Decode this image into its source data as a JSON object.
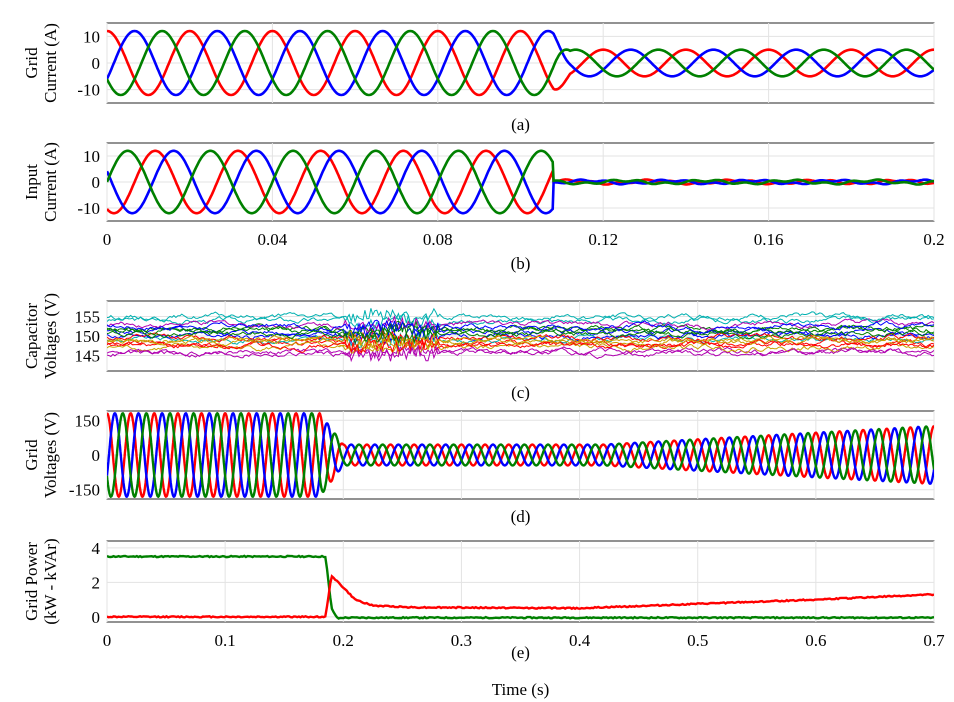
{
  "chart_data": [
    {
      "type": "line",
      "id": "a",
      "caption": "(a)",
      "ylabel": [
        "Grid",
        "Current (A)"
      ],
      "xlim": [
        0,
        0.2
      ],
      "ylim": [
        -15,
        15
      ],
      "yticks": [
        -10,
        0,
        10
      ],
      "ytick_labels": [
        "-10",
        "0",
        "10"
      ],
      "show_xtick_labels": false,
      "series": [
        {
          "color": "#ff0000",
          "amplitude_before": 12,
          "amplitude_after": 5,
          "phase_deg": 90,
          "freq_hz": 50
        },
        {
          "color": "#0000ff",
          "amplitude_before": 12,
          "amplitude_after": 5,
          "phase_deg": -30,
          "freq_hz": 50
        },
        {
          "color": "#008000",
          "amplitude_before": 12,
          "amplitude_after": 5,
          "phase_deg": 210,
          "freq_hz": 50
        }
      ],
      "event_time": 0.108
    },
    {
      "type": "line",
      "id": "b",
      "caption": "(b)",
      "ylabel": [
        "Input",
        "Current (A)"
      ],
      "xlim": [
        0,
        0.2
      ],
      "ylim": [
        -15,
        15
      ],
      "yticks": [
        -10,
        0,
        10
      ],
      "ytick_labels": [
        "-10",
        "0",
        "10"
      ],
      "xticks": [
        0,
        0.04,
        0.08,
        0.12,
        0.16,
        0.2
      ],
      "xtick_labels": [
        "0",
        "0.04",
        "0.08",
        "0.12",
        "0.16",
        "0.2"
      ],
      "show_xtick_labels": true,
      "series": [
        {
          "color": "#ff0000",
          "amplitude_before": 12,
          "amplitude_after": 0.6,
          "phase_deg": 240,
          "freq_hz": 50
        },
        {
          "color": "#0000ff",
          "amplitude_before": 12,
          "amplitude_after": 0.6,
          "phase_deg": 160,
          "freq_hz": 50
        },
        {
          "color": "#008000",
          "amplitude_before": 12,
          "amplitude_after": 0.6,
          "phase_deg": 0,
          "freq_hz": 50
        }
      ],
      "event_time": 0.108
    },
    {
      "type": "line",
      "id": "c",
      "caption": "(c)",
      "ylabel": [
        "Capacitor",
        "Voltages (V)"
      ],
      "xlim": [
        0,
        0.7
      ],
      "ylim": [
        141,
        159
      ],
      "yticks": [
        145,
        150,
        155
      ],
      "ytick_labels": [
        "145",
        "150",
        "155"
      ],
      "show_xtick_labels": false,
      "series_colors": [
        "#00b0b0",
        "#b000b0",
        "#0000ff",
        "#ff0000",
        "#008000",
        "#c8a000",
        "#00b0b0",
        "#b000b0",
        "#0000ff",
        "#ff0000",
        "#008000",
        "#c8a000",
        "#00b0b0",
        "#b000b0",
        "#0000ff",
        "#ff0000",
        "#008000",
        "#c8a000"
      ],
      "series_levels": [
        154,
        146,
        151,
        148,
        152,
        147,
        149,
        153,
        150,
        149.5,
        151.5,
        148.5,
        155,
        145.5,
        152.5,
        147.5,
        150.5,
        149
      ]
    },
    {
      "type": "line",
      "id": "d",
      "caption": "(d)",
      "ylabel": [
        "Grid",
        "Voltages (V)"
      ],
      "xlim": [
        0,
        0.7
      ],
      "ylim": [
        -190,
        190
      ],
      "yticks": [
        -150,
        0,
        150
      ],
      "ytick_labels": [
        "-150",
        "0",
        "150"
      ],
      "show_xtick_labels": false,
      "series": [
        {
          "color": "#ff0000",
          "phase_deg": 90
        },
        {
          "color": "#0000ff",
          "phase_deg": -30
        },
        {
          "color": "#008000",
          "phase_deg": 210
        }
      ],
      "freq_hz": 50,
      "amplitude_before": 180,
      "amplitude_after": 45,
      "amplitude_end": 125,
      "event_time": 0.19
    },
    {
      "type": "line",
      "id": "e",
      "caption": "(e)",
      "ylabel": [
        "Grid Power",
        "(kW - kVAr)"
      ],
      "xlabel": "Time (s)",
      "xlim": [
        0,
        0.7
      ],
      "ylim": [
        -0.3,
        4.4
      ],
      "yticks": [
        0,
        2,
        4
      ],
      "ytick_labels": [
        "0",
        "2",
        "4"
      ],
      "xticks": [
        0,
        0.1,
        0.2,
        0.3,
        0.4,
        0.5,
        0.6,
        0.7
      ],
      "xtick_labels": [
        "0",
        "0.1",
        "0.2",
        "0.3",
        "0.4",
        "0.5",
        "0.6",
        "0.7"
      ],
      "show_xtick_labels": true,
      "series": [
        {
          "color": "#008000",
          "points": [
            [
              0,
              3.5
            ],
            [
              0.185,
              3.5
            ],
            [
              0.19,
              0.5
            ],
            [
              0.195,
              -0.1
            ],
            [
              0.2,
              -0.05
            ],
            [
              0.7,
              -0.05
            ]
          ]
        },
        {
          "color": "#ff0000",
          "points": [
            [
              0,
              0.0
            ],
            [
              0.185,
              0.0
            ],
            [
              0.19,
              2.4
            ],
            [
              0.2,
              1.7
            ],
            [
              0.21,
              1.0
            ],
            [
              0.225,
              0.65
            ],
            [
              0.26,
              0.55
            ],
            [
              0.4,
              0.5
            ],
            [
              0.5,
              0.75
            ],
            [
              0.6,
              1.0
            ],
            [
              0.7,
              1.3
            ]
          ]
        }
      ]
    }
  ]
}
